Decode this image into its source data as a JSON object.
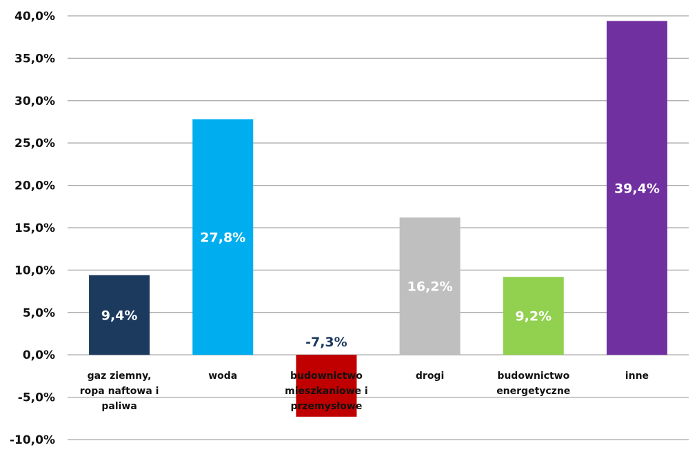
{
  "chart_data": {
    "type": "bar",
    "categories": [
      [
        "gaz ziemny,",
        "ropa naftowa i",
        "paliwa"
      ],
      [
        "woda"
      ],
      [
        "budownictwo",
        "mieszkaniowe i",
        "przemysłowe"
      ],
      [
        "drogi"
      ],
      [
        "budownictwo",
        "energetyczne"
      ],
      [
        "inne"
      ]
    ],
    "values": [
      9.4,
      27.8,
      -7.3,
      16.2,
      9.2,
      39.4
    ],
    "data_labels": [
      "9,4%",
      "27,8%",
      "-7,3%",
      "16,2%",
      "9,2%",
      "39,4%"
    ],
    "bar_colors": [
      "#1c3a5e",
      "#00aeef",
      "#c00000",
      "#bfbfbf",
      "#92d050",
      "#7030a0"
    ],
    "label_colors": [
      "#ffffff",
      "#ffffff",
      "#1c3a5e",
      "#ffffff",
      "#ffffff",
      "#ffffff"
    ],
    "y_ticks": [
      "-10,0%",
      "-5,0%",
      "0,0%",
      "5,0%",
      "10,0%",
      "15,0%",
      "20,0%",
      "25,0%",
      "30,0%",
      "35,0%",
      "40,0%"
    ],
    "ylim": [
      -10,
      40
    ],
    "grid": true,
    "gridline_color": "#a6a6a6",
    "title": "",
    "xlabel": "",
    "ylabel": ""
  }
}
